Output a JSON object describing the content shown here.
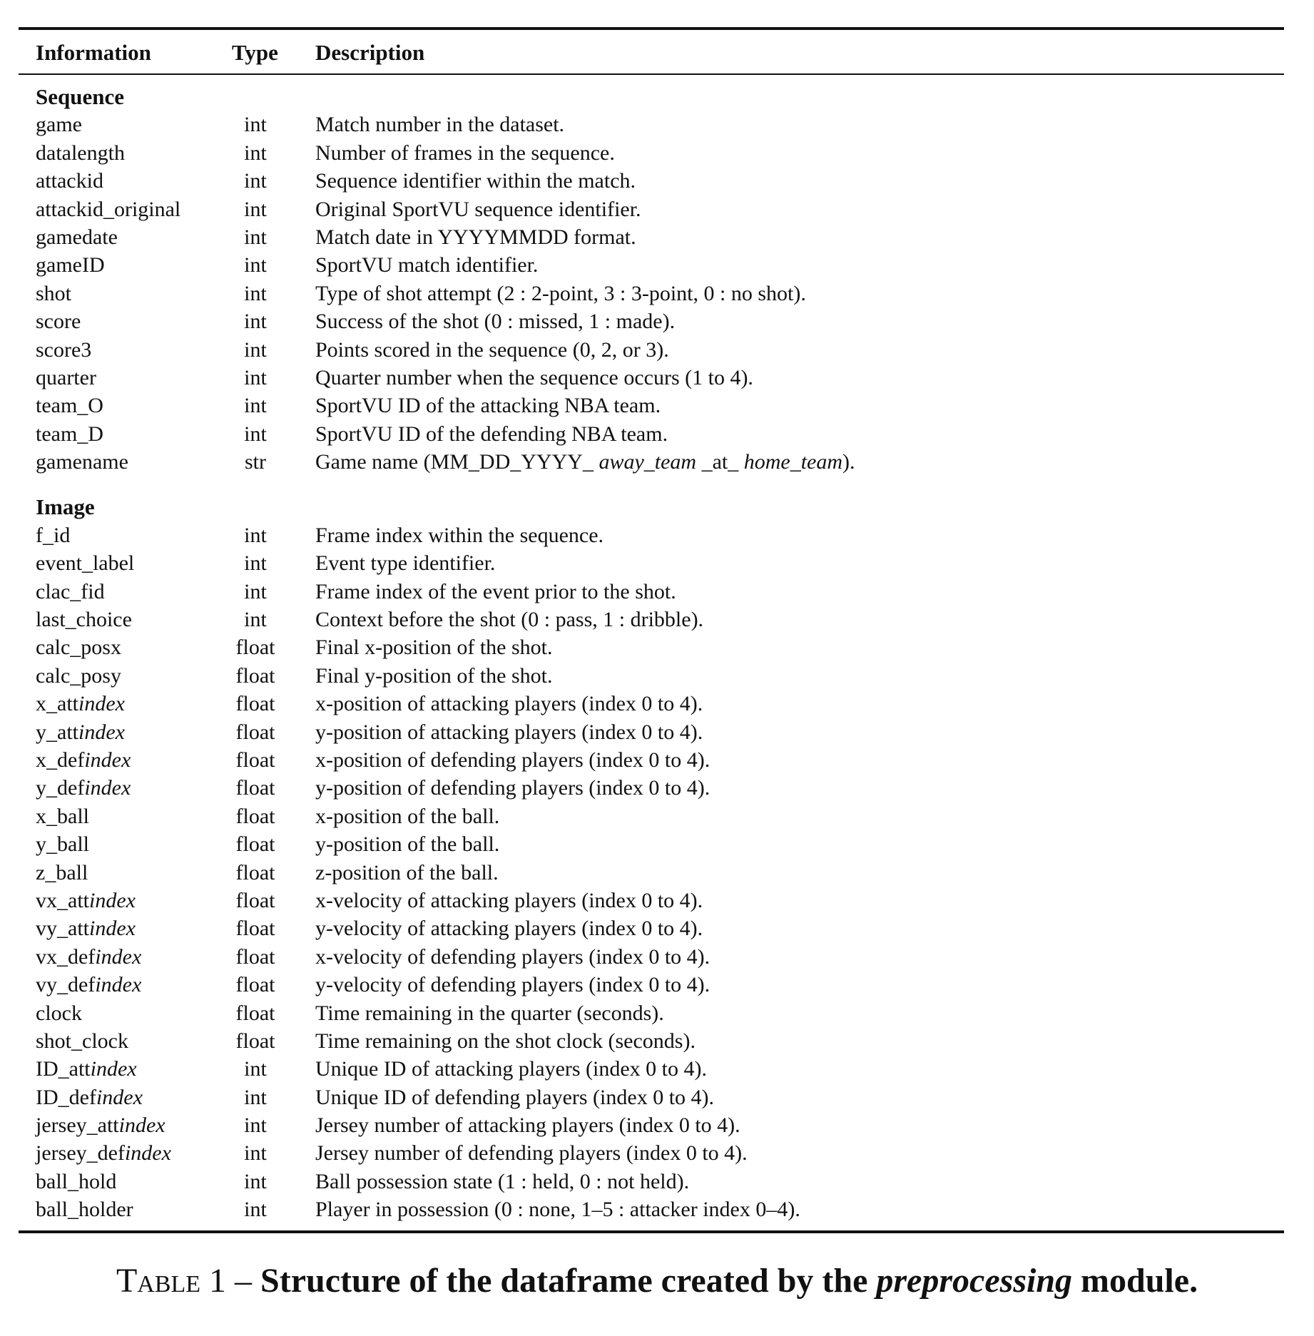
{
  "table": {
    "headers": {
      "information": "Information",
      "type": "Type",
      "description": "Description"
    },
    "sections": [
      {
        "title": "Sequence",
        "rows": [
          {
            "name": "game",
            "type": "int",
            "description": "Match number in the dataset."
          },
          {
            "name": "datalength",
            "type": "int",
            "description": "Number of frames in the sequence."
          },
          {
            "name": "attackid",
            "type": "int",
            "description": "Sequence identifier within the match."
          },
          {
            "name": "attackid_original",
            "type": "int",
            "description": "Original SportVU sequence identifier."
          },
          {
            "name": "gamedate",
            "type": "int",
            "description": "Match date in YYYYMMDD format."
          },
          {
            "name": "gameID",
            "type": "int",
            "description": "SportVU match identifier."
          },
          {
            "name": "shot",
            "type": "int",
            "description": "Type of shot attempt (2 : 2-point, 3 : 3-point, 0 : no shot)."
          },
          {
            "name": "score",
            "type": "int",
            "description": "Success of the shot (0 : missed, 1 : made)."
          },
          {
            "name": "score3",
            "type": "int",
            "description": "Points scored in the sequence (0, 2, or 3)."
          },
          {
            "name": "quarter",
            "type": "int",
            "description": "Quarter number when the sequence occurs (1 to 4)."
          },
          {
            "name": "team_O",
            "type": "int",
            "description": "SportVU ID of the attacking NBA team."
          },
          {
            "name": "team_D",
            "type": "int",
            "description": "SportVU ID of the defending NBA team."
          },
          {
            "name": "gamename",
            "type": "str",
            "description": "Game name (MM_DD_YYYY_ <i>away_team</i> _at_ <i>home_team</i>)."
          }
        ]
      },
      {
        "title": "Image",
        "rows": [
          {
            "name": "f_id",
            "type": "int",
            "description": "Frame index within the sequence."
          },
          {
            "name": "event_label",
            "type": "int",
            "description": "Event type identifier."
          },
          {
            "name": "clac_fid",
            "type": "int",
            "description": "Frame index of the event prior to the shot."
          },
          {
            "name": "last_choice",
            "type": "int",
            "description": "Context before the shot (0 : pass, 1 : dribble)."
          },
          {
            "name": "calc_posx",
            "type": "float",
            "description": "Final x-position of the shot."
          },
          {
            "name": "calc_posy",
            "type": "float",
            "description": "Final y-position of the shot."
          },
          {
            "name": "x_att<i>index</i>",
            "type": "float",
            "description": "x-position of attacking players (index 0 to 4)."
          },
          {
            "name": "y_att<i>index</i>",
            "type": "float",
            "description": "y-position of attacking players (index 0 to 4)."
          },
          {
            "name": "x_def<i>index</i>",
            "type": "float",
            "description": "x-position of defending players (index 0 to 4)."
          },
          {
            "name": "y_def<i>index</i>",
            "type": "float",
            "description": "y-position of defending players (index 0 to 4)."
          },
          {
            "name": "x_ball",
            "type": "float",
            "description": "x-position of the ball."
          },
          {
            "name": "y_ball",
            "type": "float",
            "description": "y-position of the ball."
          },
          {
            "name": "z_ball",
            "type": "float",
            "description": "z-position of the ball."
          },
          {
            "name": "vx_att<i>index</i>",
            "type": "float",
            "description": "x-velocity of attacking players (index 0 to 4)."
          },
          {
            "name": "vy_att<i>index</i>",
            "type": "float",
            "description": "y-velocity of attacking players (index 0 to 4)."
          },
          {
            "name": "vx_def<i>index</i>",
            "type": "float",
            "description": "x-velocity of defending players (index 0 to 4)."
          },
          {
            "name": "vy_def<i>index</i>",
            "type": "float",
            "description": "y-velocity of defending players (index 0 to 4)."
          },
          {
            "name": "clock",
            "type": "float",
            "description": "Time remaining in the quarter (seconds)."
          },
          {
            "name": "shot_clock",
            "type": "float",
            "description": "Time remaining on the shot clock (seconds)."
          },
          {
            "name": "ID_att<i>index</i>",
            "type": "int",
            "description": "Unique ID of attacking players (index 0 to 4)."
          },
          {
            "name": "ID_def<i>index</i>",
            "type": "int",
            "description": "Unique ID of defending players (index 0 to 4)."
          },
          {
            "name": "jersey_att<i>index</i>",
            "type": "int",
            "description": "Jersey number of attacking players (index 0 to 4)."
          },
          {
            "name": "jersey_def<i>index</i>",
            "type": "int",
            "description": "Jersey number of defending players (index 0 to 4)."
          },
          {
            "name": "ball_hold",
            "type": "int",
            "description": "Ball possession state (1 : held, 0 : not held)."
          },
          {
            "name": "ball_holder",
            "type": "int",
            "description": "Player in possession (0 : none, 1–5 : attacker index 0–4)."
          }
        ]
      }
    ]
  },
  "caption": {
    "label": "Table 1",
    "separator": " – ",
    "text": "Structure of the dataframe created by the <i>preprocessing</i> module."
  }
}
